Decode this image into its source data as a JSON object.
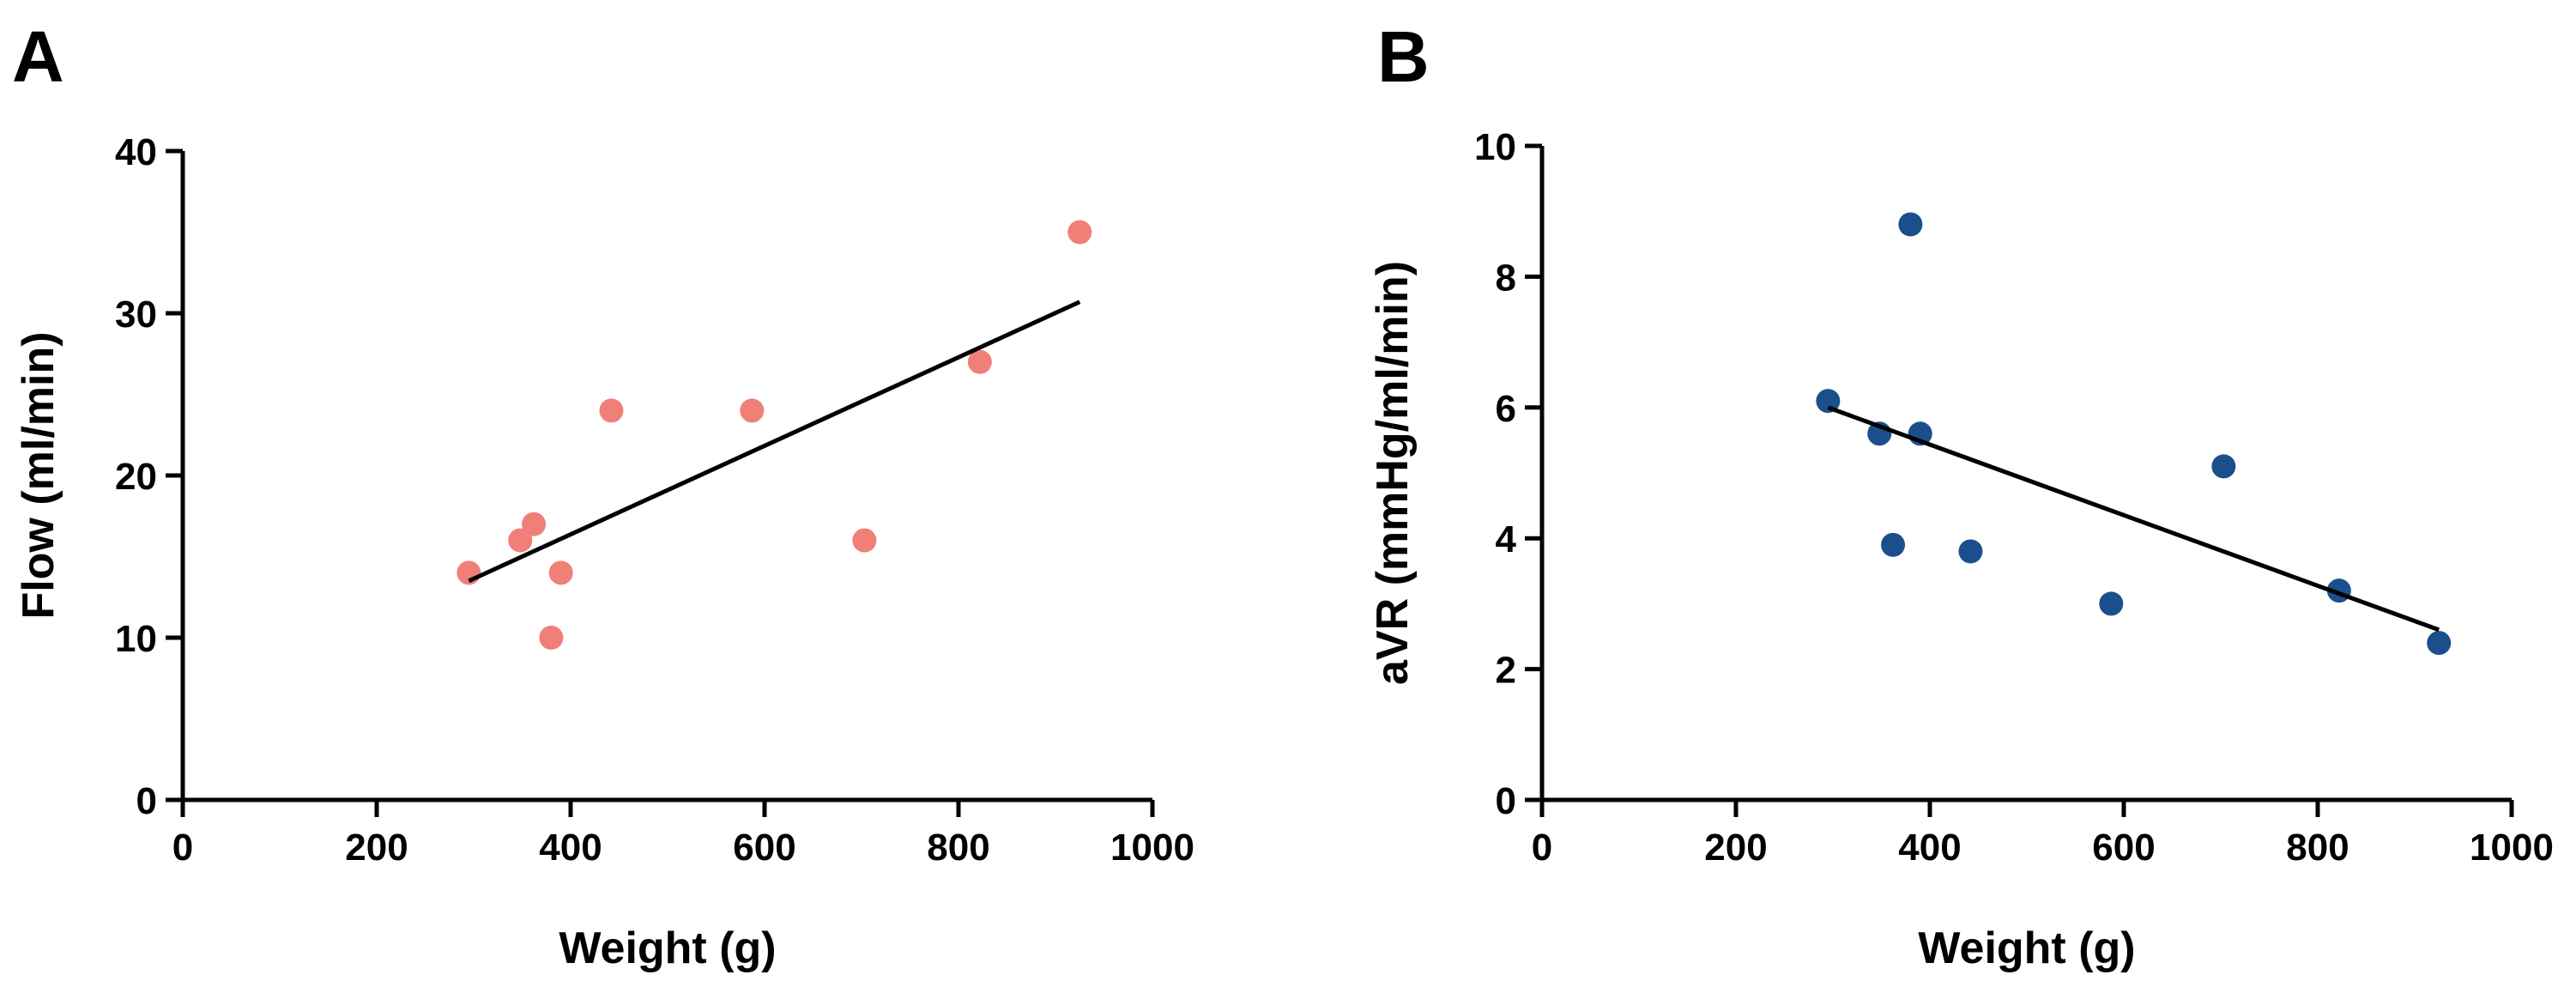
{
  "figure": {
    "panels": [
      "A",
      "B"
    ]
  },
  "chart_data": [
    {
      "type": "scatter",
      "panel": "A",
      "title": "",
      "xlabel": "Weight (g)",
      "ylabel": "Flow (ml/min)",
      "xlim": [
        0,
        1000
      ],
      "ylim": [
        0,
        40
      ],
      "xticks": [
        0,
        200,
        400,
        600,
        800,
        1000
      ],
      "yticks": [
        0,
        10,
        20,
        30,
        40
      ],
      "grid": false,
      "marker_color": "#f07f78",
      "points": [
        {
          "x": 295,
          "y": 14
        },
        {
          "x": 348,
          "y": 16
        },
        {
          "x": 362,
          "y": 17
        },
        {
          "x": 380,
          "y": 10
        },
        {
          "x": 390,
          "y": 14
        },
        {
          "x": 442,
          "y": 24
        },
        {
          "x": 587,
          "y": 24
        },
        {
          "x": 703,
          "y": 16
        },
        {
          "x": 822,
          "y": 27
        },
        {
          "x": 925,
          "y": 35
        }
      ],
      "fit_line": {
        "x": [
          295,
          925
        ],
        "y": [
          13.5,
          30.7
        ],
        "color": "#000000"
      }
    },
    {
      "type": "scatter",
      "panel": "B",
      "title": "",
      "xlabel": "Weight (g)",
      "ylabel": "aVR (mmHg/ml/min)",
      "xlim": [
        0,
        1000
      ],
      "ylim": [
        0,
        10
      ],
      "xticks": [
        0,
        200,
        400,
        600,
        800,
        1000
      ],
      "yticks": [
        0,
        2,
        4,
        6,
        8,
        10
      ],
      "grid": false,
      "marker_color": "#1b4f8c",
      "points": [
        {
          "x": 295,
          "y": 6.1
        },
        {
          "x": 348,
          "y": 5.6
        },
        {
          "x": 362,
          "y": 3.9
        },
        {
          "x": 380,
          "y": 8.8
        },
        {
          "x": 390,
          "y": 5.6
        },
        {
          "x": 442,
          "y": 3.8
        },
        {
          "x": 587,
          "y": 3.0
        },
        {
          "x": 703,
          "y": 5.1
        },
        {
          "x": 822,
          "y": 3.2
        },
        {
          "x": 925,
          "y": 2.4
        }
      ],
      "fit_line": {
        "x": [
          295,
          925
        ],
        "y": [
          6.0,
          2.6
        ],
        "color": "#000000"
      }
    }
  ]
}
